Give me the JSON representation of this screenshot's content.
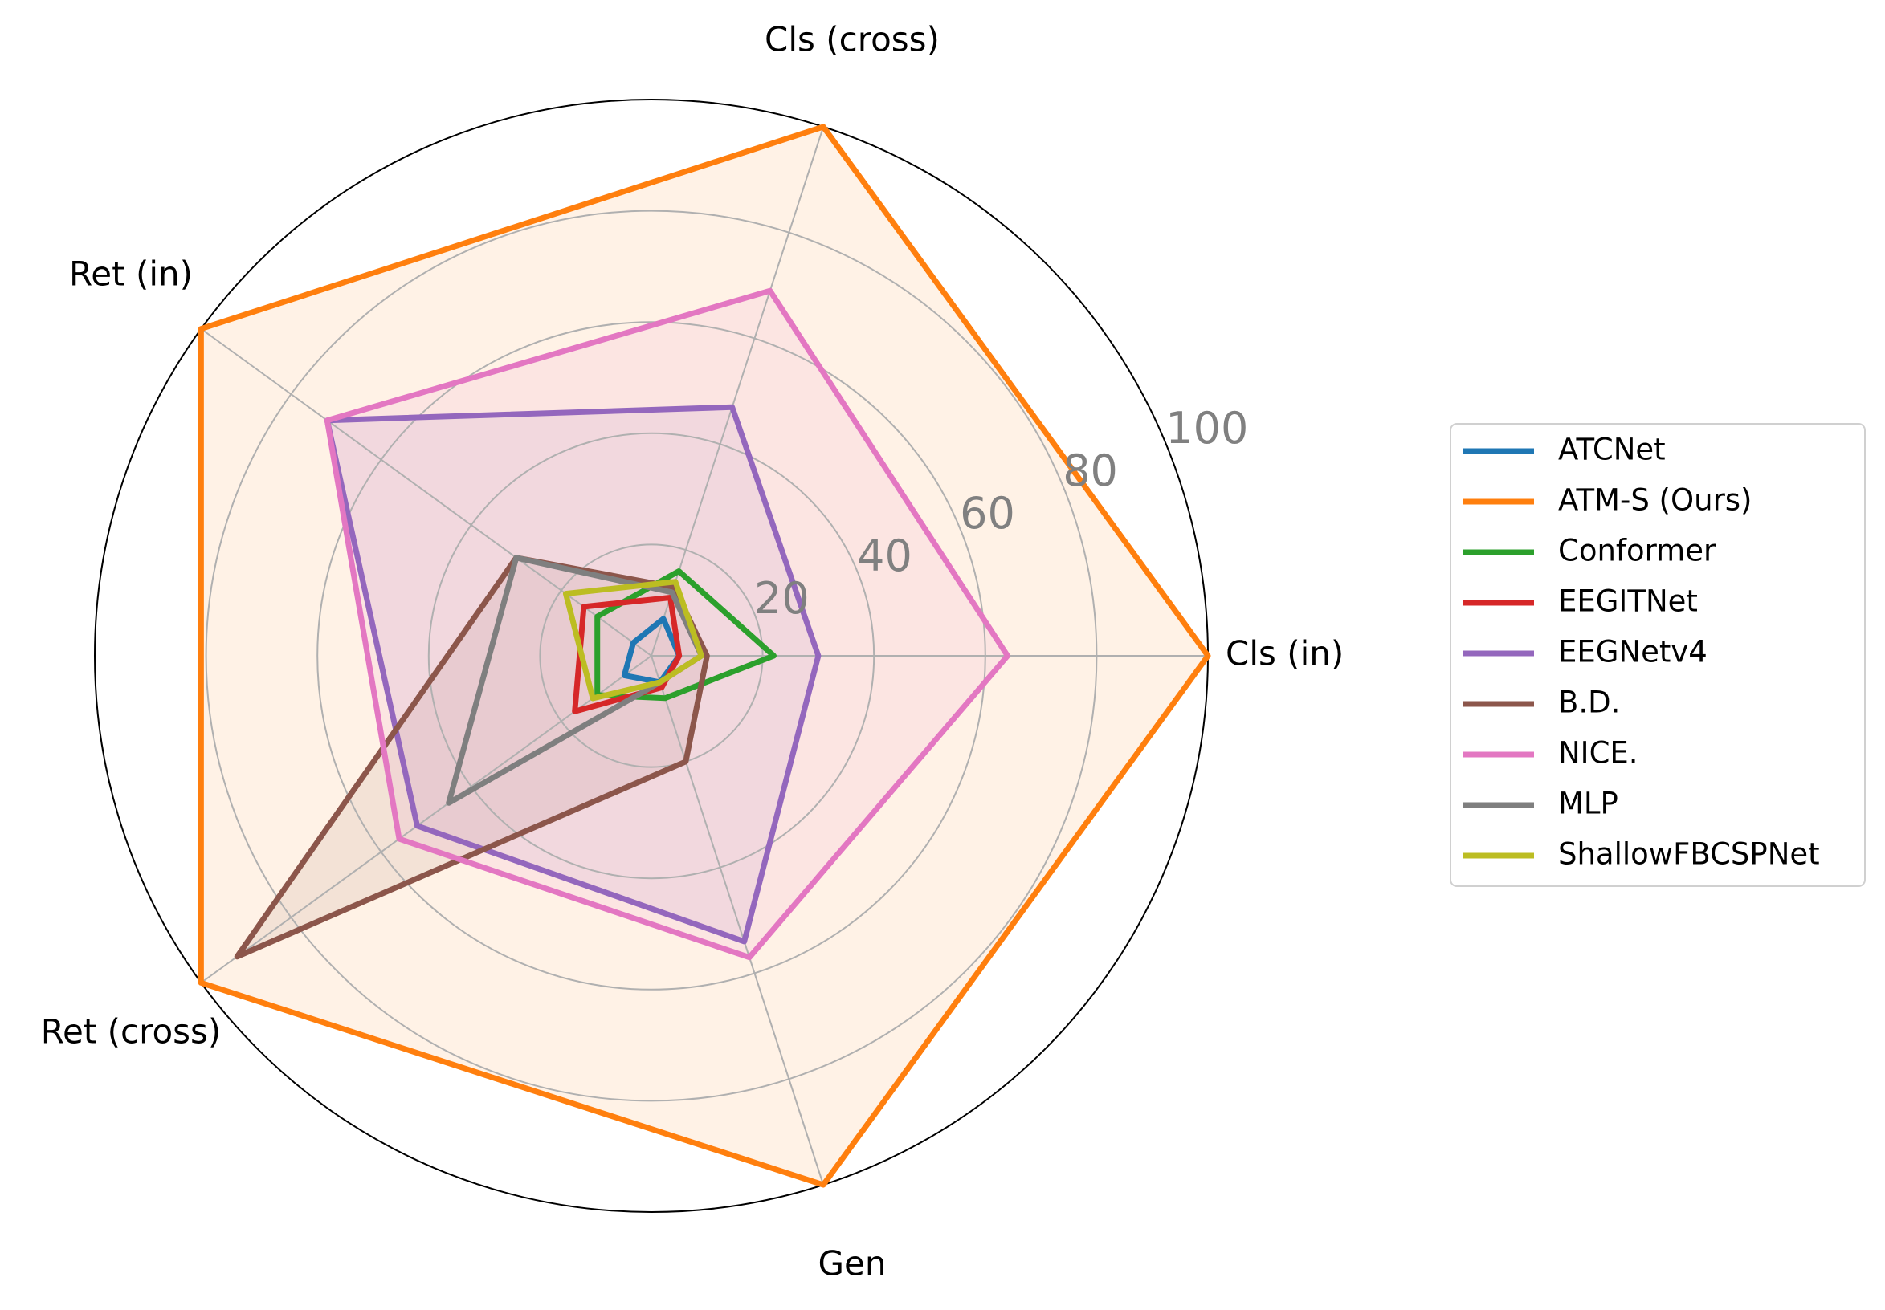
{
  "chart_data": {
    "type": "radar",
    "title": "",
    "axes": [
      "Cls (in)",
      "Cls (cross)",
      "Ret (in)",
      "Ret (cross)",
      "Gen"
    ],
    "rlim": [
      0,
      100
    ],
    "rticks": [
      "20",
      "40",
      "60",
      "80",
      "100"
    ],
    "grid": true,
    "legend_position": "right",
    "series": [
      {
        "name": "ATCNet",
        "color": "#1f77b4",
        "values": [
          5,
          7,
          4,
          6,
          5
        ],
        "fill": false
      },
      {
        "name": "ATM-S (Ours)",
        "color": "#ff7f0e",
        "values": [
          100,
          100,
          100,
          100,
          100
        ],
        "fill": true
      },
      {
        "name": "Conformer",
        "color": "#2ca02c",
        "values": [
          22,
          16,
          12,
          12,
          8
        ],
        "fill": false
      },
      {
        "name": "EEGITNet",
        "color": "#d62728",
        "values": [
          5,
          11,
          15,
          17,
          6
        ],
        "fill": false
      },
      {
        "name": "EEGNetv4",
        "color": "#9467bd",
        "values": [
          30,
          47,
          72,
          52,
          54
        ],
        "fill": true
      },
      {
        "name": "B.D.",
        "color": "#8c564b",
        "values": [
          10,
          13,
          30,
          92,
          20
        ],
        "fill": true
      },
      {
        "name": "NICE.",
        "color": "#e377c2",
        "values": [
          64,
          69,
          72,
          56,
          57
        ],
        "fill": true
      },
      {
        "name": "MLP",
        "color": "#7f7f7f",
        "values": [
          9,
          12,
          30,
          45,
          5
        ],
        "fill": false
      },
      {
        "name": "ShallowFBCSPNet",
        "color": "#bcbd22",
        "values": [
          9,
          14,
          19,
          13,
          5
        ],
        "fill": false
      }
    ]
  }
}
